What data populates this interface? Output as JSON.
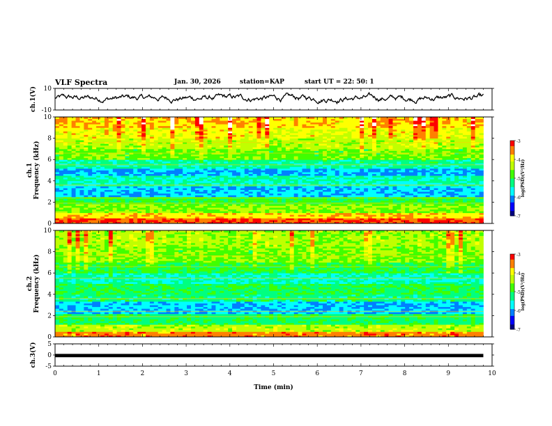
{
  "header": {
    "title": "VLF Spectra",
    "date": "Jan. 30, 2026",
    "station": "station=KAP",
    "start": "start  UT =   22: 50: 1"
  },
  "colors": {
    "palette": [
      "#000080",
      "#0000ff",
      "#0080ff",
      "#00ffff",
      "#00ff80",
      "#40ff00",
      "#c0ff00",
      "#ffff00",
      "#ff8000",
      "#ff0000",
      "#ffffff"
    ],
    "line": "#000000"
  },
  "chart_data": [
    {
      "type": "line",
      "id": "ch1-waveform",
      "ylabel": "ch.1(V)",
      "ylim": [
        -10,
        10
      ],
      "ytick_labels": [
        "10",
        "-10"
      ],
      "xlim": [
        0,
        10
      ],
      "series": [
        {
          "name": "ch.1",
          "envelope_range": [
            -4,
            6
          ]
        }
      ]
    },
    {
      "type": "heatmap",
      "id": "ch1-spectrogram",
      "ylabel": "ch.1\nFrequency  (kHz)",
      "ylim": [
        0,
        10
      ],
      "ytick_labels": [
        "0",
        "2",
        "4",
        "6",
        "8",
        "10"
      ],
      "xlim": [
        0,
        10
      ],
      "data_xmax": 9.8,
      "colorbar": {
        "label": "log(PSD)(V²/Hz)",
        "range": [
          -7,
          -3
        ],
        "tick_labels": [
          "-3",
          "-4",
          "-5",
          "-6",
          "-7"
        ]
      },
      "bands": [
        {
          "f": [
            0.0,
            0.5
          ],
          "level": 8.5
        },
        {
          "f": [
            0.5,
            1.0
          ],
          "level": 7.2
        },
        {
          "f": [
            1.0,
            1.8
          ],
          "level": 5.5
        },
        {
          "f": [
            1.8,
            2.5
          ],
          "level": 4.6
        },
        {
          "f": [
            2.5,
            3.5
          ],
          "level": 2.6
        },
        {
          "f": [
            3.5,
            4.5
          ],
          "level": 3.6
        },
        {
          "f": [
            4.5,
            5.2
          ],
          "level": 2.4
        },
        {
          "f": [
            5.2,
            6.0
          ],
          "level": 3.8
        },
        {
          "f": [
            6.0,
            7.0
          ],
          "level": 5.2
        },
        {
          "f": [
            7.0,
            8.0
          ],
          "level": 6.0
        },
        {
          "f": [
            8.0,
            9.0
          ],
          "level": 6.8
        },
        {
          "f": [
            9.0,
            10.0
          ],
          "level": 7.4
        }
      ]
    },
    {
      "type": "heatmap",
      "id": "ch2-spectrogram",
      "ylabel": "ch.2\nFrequency  (kHz)",
      "ylim": [
        0,
        10
      ],
      "ytick_labels": [
        "0",
        "2",
        "4",
        "6",
        "8",
        "10"
      ],
      "xlim": [
        0,
        10
      ],
      "data_xmax": 9.8,
      "colorbar": {
        "label": "log(PSD)(V²/Hz)",
        "range": [
          -7,
          -3
        ],
        "tick_labels": [
          "-3",
          "-4",
          "-5",
          "-6",
          "-7"
        ]
      },
      "bands": [
        {
          "f": [
            0.0,
            0.5
          ],
          "level": 8.0
        },
        {
          "f": [
            0.5,
            1.2
          ],
          "level": 6.0
        },
        {
          "f": [
            1.2,
            2.2
          ],
          "level": 4.2
        },
        {
          "f": [
            2.2,
            3.3
          ],
          "level": 2.6
        },
        {
          "f": [
            3.3,
            4.0
          ],
          "level": 4.0
        },
        {
          "f": [
            4.0,
            5.0
          ],
          "level": 4.4
        },
        {
          "f": [
            5.0,
            6.0
          ],
          "level": 3.5
        },
        {
          "f": [
            6.0,
            7.0
          ],
          "level": 4.6
        },
        {
          "f": [
            7.0,
            8.5
          ],
          "level": 5.4
        },
        {
          "f": [
            8.5,
            10.0
          ],
          "level": 5.8
        }
      ]
    },
    {
      "type": "line",
      "id": "ch3-waveform",
      "ylabel": "ch.3(V)",
      "ylim": [
        -5,
        5
      ],
      "ytick_labels": [
        "5",
        "0",
        "-5"
      ],
      "xlim": [
        0,
        10
      ],
      "series": [
        {
          "name": "ch.3",
          "band": [
            -1,
            0.5
          ]
        }
      ]
    }
  ],
  "xaxis": {
    "label": "Time  (min)",
    "tick_labels": [
      "0",
      "1",
      "2",
      "3",
      "4",
      "5",
      "6",
      "7",
      "8",
      "9",
      "10"
    ]
  }
}
